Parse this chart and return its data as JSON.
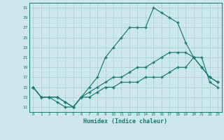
{
  "xlabel": "Humidex (Indice chaleur)",
  "xlim": [
    -0.5,
    23.5
  ],
  "ylim": [
    10.0,
    32.0
  ],
  "yticks": [
    11,
    13,
    15,
    17,
    19,
    21,
    23,
    25,
    27,
    29,
    31
  ],
  "xticks": [
    0,
    1,
    2,
    3,
    4,
    5,
    6,
    7,
    8,
    9,
    10,
    11,
    12,
    13,
    14,
    15,
    16,
    17,
    18,
    19,
    20,
    21,
    22,
    23
  ],
  "bg_color": "#cce8ec",
  "grid_color": "#aacdd4",
  "line_color": "#1a7a6e",
  "line1_x": [
    0,
    1,
    2,
    3,
    4,
    5,
    6,
    7,
    8,
    9,
    10,
    11,
    12,
    13,
    14,
    15,
    16,
    17,
    18,
    19,
    20,
    21,
    22,
    23
  ],
  "line1_y": [
    15,
    13,
    13,
    12,
    11,
    11,
    13,
    15,
    17,
    21,
    23,
    25,
    27,
    27,
    27,
    31,
    30,
    29,
    28,
    24,
    21,
    19,
    17,
    16
  ],
  "line2_x": [
    0,
    1,
    2,
    3,
    4,
    5,
    6,
    7,
    8,
    9,
    10,
    11,
    12,
    13,
    14,
    15,
    16,
    17,
    18,
    19,
    20,
    21,
    22,
    23
  ],
  "line2_y": [
    15,
    13,
    13,
    13,
    12,
    11,
    13,
    14,
    15,
    16,
    17,
    17,
    18,
    19,
    19,
    20,
    21,
    22,
    22,
    22,
    21,
    19,
    17,
    16
  ],
  "line3_x": [
    0,
    1,
    2,
    3,
    4,
    5,
    6,
    7,
    8,
    9,
    10,
    11,
    12,
    13,
    14,
    15,
    16,
    17,
    18,
    19,
    20,
    21,
    22,
    23
  ],
  "line3_y": [
    15,
    13,
    13,
    13,
    12,
    11,
    13,
    13,
    14,
    15,
    15,
    16,
    16,
    16,
    17,
    17,
    17,
    18,
    19,
    19,
    21,
    21,
    16,
    15
  ]
}
